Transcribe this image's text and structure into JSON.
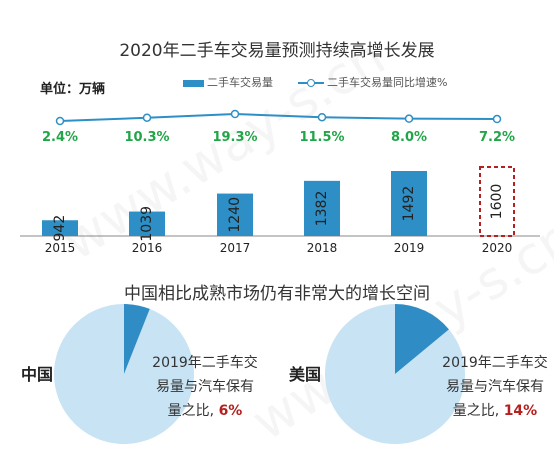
{
  "watermark": "www.way-s.cn",
  "unit": {
    "label": "单位：",
    "value": "万辆"
  },
  "chart_data": [
    {
      "type": "bar",
      "title": "2020年二手车交易量预测持续高增长发展",
      "categories": [
        "2015",
        "2016",
        "2017",
        "2018",
        "2019",
        "2020"
      ],
      "series": [
        {
          "name": "二手车交易量",
          "type": "bar",
          "values": [
            942,
            1039,
            1240,
            1382,
            1492,
            1600
          ],
          "color": "#2e8fc6",
          "forecast_last": true
        },
        {
          "name": "二手车交易量同比增速%",
          "type": "line",
          "values": [
            2.4,
            10.3,
            19.3,
            11.5,
            8.0,
            7.2
          ],
          "labels": [
            "2.4%",
            "10.3%",
            "19.3%",
            "11.5%",
            "8.0%",
            "7.2%"
          ],
          "color": "#2e8fc6",
          "label_color": "#21a548"
        }
      ],
      "bar_labels": [
        "942",
        "1039",
        "1240",
        "1382",
        "1492",
        "1600"
      ]
    },
    {
      "type": "pie",
      "title": "中国相比成熟市场仍有非常大的增长空间",
      "pies": [
        {
          "country": "中国",
          "text_lines": [
            "2019年二手车交",
            "易量与汽车保有",
            "量之比, "
          ],
          "highlight": "6%",
          "value": 6,
          "colors": {
            "slice": "#2f8cc5",
            "rest": "#c8e4f4"
          }
        },
        {
          "country": "美国",
          "text_lines": [
            "2019年二手车交",
            "易量与汽车保有",
            "量之比, "
          ],
          "highlight": "14%",
          "value": 14,
          "colors": {
            "slice": "#2f8cc5",
            "rest": "#c8e4f4"
          }
        }
      ]
    }
  ]
}
